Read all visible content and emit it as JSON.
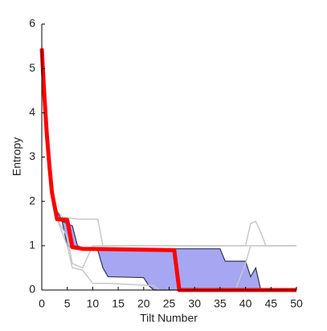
{
  "chart_data": {
    "type": "line",
    "xlabel": "Tilt Number",
    "ylabel": "Entropy",
    "xlim": [
      0,
      50
    ],
    "xticks": [
      0,
      5,
      10,
      15,
      20,
      25,
      30,
      35,
      40,
      45,
      50
    ],
    "ylim": [
      0,
      6
    ],
    "yticks": [
      0,
      1,
      2,
      3,
      4,
      5,
      6
    ],
    "band": {
      "color": "#a6a6f2",
      "edge_color": "#333355",
      "x": [
        3,
        4,
        5,
        6,
        7,
        8,
        11,
        12,
        13,
        20,
        21,
        22,
        26,
        27,
        35,
        36,
        40,
        41,
        42,
        43
      ],
      "lower": [
        1.6,
        1.55,
        1.0,
        0.95,
        0.95,
        0.95,
        0.9,
        0.5,
        0.3,
        0.28,
        0.1,
        0,
        0,
        0,
        0,
        0,
        0,
        0,
        0,
        0
      ],
      "upper": [
        1.8,
        1.55,
        1.5,
        1.45,
        1.0,
        0.95,
        0.95,
        0.93,
        0.93,
        0.93,
        0.93,
        0.93,
        0.93,
        0.93,
        0.93,
        0.65,
        0.65,
        0.3,
        0.5,
        0
      ]
    },
    "series": [
      {
        "color": "#c8c8c8",
        "width": 1.5,
        "x": [
          0,
          1,
          2,
          3,
          4,
          7,
          11,
          12,
          40,
          41,
          42,
          43,
          44,
          50
        ],
        "values": [
          5.5,
          3.6,
          2.2,
          1.8,
          1.65,
          1.6,
          1.6,
          1.0,
          1.0,
          1.5,
          1.55,
          1.3,
          1.0,
          1.0
        ]
      },
      {
        "color": "#c8c8c8",
        "width": 1.5,
        "x": [
          2,
          3,
          5,
          6,
          8,
          10,
          50
        ],
        "values": [
          2.2,
          1.6,
          1.2,
          0.6,
          0.5,
          1.0,
          1.0
        ]
      },
      {
        "color": "#c8c8c8",
        "width": 1.5,
        "x": [
          3,
          5,
          6,
          8,
          9,
          10,
          13,
          22,
          23,
          38,
          40,
          41,
          50
        ],
        "values": [
          1.6,
          1.0,
          0.5,
          0.45,
          0.3,
          0.15,
          0.15,
          0.1,
          0.0,
          0.0,
          0.6,
          1.0,
          1.0
        ]
      },
      {
        "color": "#ff0000",
        "width": 5,
        "x": [
          0,
          0.5,
          1,
          1.5,
          2,
          3,
          5,
          6,
          8,
          26,
          27,
          50
        ],
        "values": [
          5.45,
          4.4,
          3.5,
          2.8,
          2.2,
          1.6,
          1.58,
          0.97,
          0.93,
          0.9,
          0,
          0
        ]
      }
    ]
  }
}
